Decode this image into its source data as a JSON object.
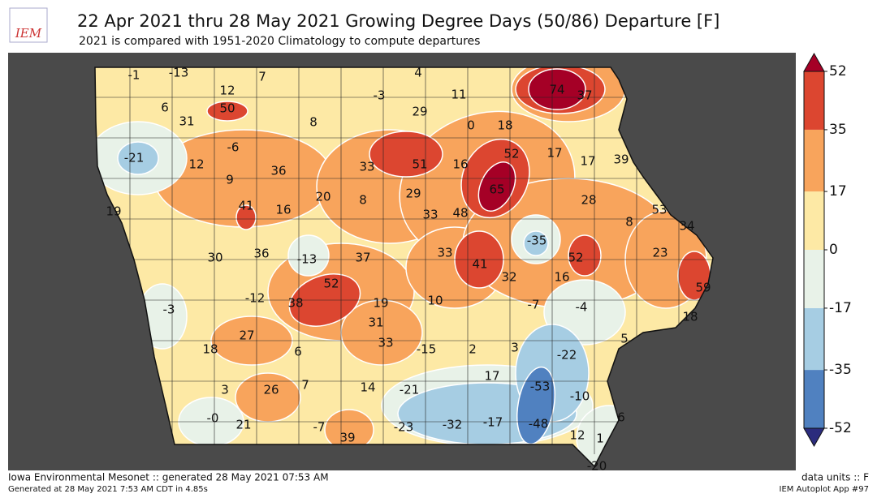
{
  "logo": "IEM",
  "title": "22 Apr 2021 thru 28 May 2021 Growing Degree Days (50/86) Departure [F]",
  "subtitle": "2021 is compared with 1951-2020 Climatology to compute departures",
  "stations": {
    "values": [
      -1,
      -13,
      7,
      4,
      12,
      -3,
      11,
      74,
      37,
      6,
      50,
      29,
      31,
      8,
      0,
      18,
      -6,
      52,
      17,
      17,
      39,
      -21,
      12,
      51,
      16,
      33,
      36,
      9,
      65,
      29,
      20,
      8,
      28,
      41,
      16,
      48,
      33,
      53,
      19,
      8,
      34,
      -35,
      33,
      23,
      30,
      36,
      -13,
      37,
      52,
      41,
      32,
      16,
      59,
      52,
      -12,
      38,
      19,
      10,
      -7,
      -4,
      -3,
      18,
      31,
      27,
      5,
      33,
      18,
      6,
      -15,
      2,
      3,
      -22,
      17,
      7,
      14,
      -21,
      -53,
      3,
      26,
      -10,
      0,
      21,
      -7,
      -23,
      -32,
      -17,
      -48,
      6,
      12,
      1,
      39,
      -20
    ],
    "value_labels": [
      "-1",
      "-13",
      "7",
      "4",
      "12",
      "-3",
      "11",
      "74",
      "37",
      "6",
      "50",
      "29",
      "31",
      "8",
      "0",
      "18",
      "-6",
      "52",
      "17",
      "17",
      "39",
      "-21",
      "12",
      "51",
      "16",
      "33",
      "36",
      "9",
      "65",
      "29",
      "20",
      "8",
      "28",
      "41",
      "16",
      "48",
      "33",
      "53",
      "19",
      "8",
      "34",
      "-35",
      "33",
      "23",
      "30",
      "36",
      "-13",
      "37",
      "52",
      "41",
      "32",
      "16",
      "59",
      "52",
      "-12",
      "38",
      "19",
      "10",
      "-7",
      "-4",
      "-3",
      "18",
      "31",
      "27",
      "5",
      "33",
      "18",
      "6",
      "-15",
      "2",
      "3",
      "-22",
      "17",
      "7",
      "14",
      "-21",
      "-53",
      "3",
      "26",
      "-10",
      "-0",
      "21",
      "-7",
      "-23",
      "-32",
      "-17",
      "-48",
      "6",
      "12",
      "1",
      "39",
      "-20"
    ]
  },
  "colorbar": {
    "ticks": [
      -52,
      -35,
      -17,
      0,
      17,
      35,
      52
    ],
    "colors": [
      "#5081c0",
      "#a6cde3",
      "#e8f2e8",
      "#fde9a5",
      "#f8a45c",
      "#dc4630"
    ],
    "under_color": "#2b2c7d",
    "over_color": "#a50026"
  },
  "footer": {
    "left": "Iowa Environmental Mesonet :: generated 28 May 2021 07:53 AM",
    "left_small": "Generated at 28 May 2021 7:53 AM CDT in 4.85s",
    "right": "data units :: F",
    "right_small": "IEM Autoplot App #97"
  }
}
